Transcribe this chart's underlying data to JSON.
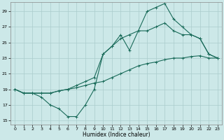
{
  "bg_color": "#cce8e8",
  "grid_color": "#aacccc",
  "line_color": "#1a6b5a",
  "xlabel": "Humidex (Indice chaleur)",
  "xlim": [
    -0.5,
    23.5
  ],
  "ylim": [
    14.5,
    30.2
  ],
  "xticks": [
    0,
    1,
    2,
    3,
    4,
    5,
    6,
    7,
    8,
    9,
    10,
    11,
    12,
    13,
    14,
    15,
    16,
    17,
    18,
    19,
    20,
    21,
    22,
    23
  ],
  "yticks": [
    15,
    17,
    19,
    21,
    23,
    25,
    27,
    29
  ],
  "s1_x": [
    0,
    1,
    2,
    3,
    4,
    5,
    6,
    7,
    8,
    9,
    10,
    11,
    12,
    13,
    14,
    15,
    16,
    17,
    18,
    19,
    20,
    21,
    22,
    23
  ],
  "s1_y": [
    19,
    18.5,
    18.5,
    18.5,
    18.5,
    18.8,
    19,
    19.2,
    19.5,
    19.8,
    20,
    20.5,
    21,
    21.5,
    22,
    22.3,
    22.5,
    22.8,
    23,
    23,
    23.2,
    23.3,
    23,
    23
  ],
  "s2_x": [
    0,
    1,
    2,
    3,
    4,
    5,
    6,
    7,
    8,
    9,
    10,
    11,
    12,
    13,
    14,
    15,
    16,
    17,
    18,
    19,
    20,
    21,
    22,
    23
  ],
  "s2_y": [
    19,
    18.5,
    18.5,
    18.5,
    18.5,
    18.8,
    19,
    19.5,
    20,
    20.5,
    23.5,
    24.5,
    25.5,
    26,
    26.5,
    26.5,
    27,
    27.5,
    26.5,
    26,
    26,
    25.5,
    23.5,
    23
  ],
  "s3_x": [
    0,
    1,
    2,
    3,
    4,
    5,
    6,
    7,
    8,
    9,
    10,
    11,
    12,
    13,
    14,
    15,
    16,
    17,
    18,
    19,
    20,
    21,
    22,
    23
  ],
  "s3_y": [
    19,
    18.5,
    18.5,
    18,
    17,
    16.5,
    15.5,
    15.5,
    17,
    19,
    23.5,
    24.5,
    26,
    24,
    26.5,
    29,
    29.5,
    30,
    28,
    27,
    26,
    25.5,
    23.5,
    23
  ]
}
